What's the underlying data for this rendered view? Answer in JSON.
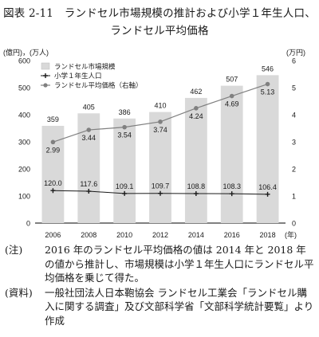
{
  "figure": {
    "title_line1": "図表 2-11　ランドセル市場規模の推計および小学１年生人口、",
    "title_line2": "ランドセル平均価格"
  },
  "chart_data": {
    "type": "bar",
    "categories": [
      "2006",
      "2008",
      "2010",
      "2012",
      "2014",
      "2016",
      "2018"
    ],
    "x_unit": "(年)",
    "series": [
      {
        "name": "ランドセル市場規模",
        "type": "bar",
        "axis": "left",
        "values": [
          359,
          405,
          386,
          410,
          462,
          507,
          546
        ],
        "color": "#d9d9d9"
      },
      {
        "name": "小学１年生人口",
        "type": "line",
        "axis": "left",
        "values": [
          120.0,
          117.6,
          109.1,
          109.7,
          108.8,
          108.3,
          106.4
        ],
        "labels": [
          "120.0",
          "117.6",
          "109.1",
          "109.7",
          "108.8",
          "108.3",
          "106.4"
        ],
        "color": "#1a1a1a"
      },
      {
        "name": "ランドセル平均価格（右軸）",
        "type": "line",
        "axis": "right",
        "values": [
          2.99,
          3.44,
          3.54,
          3.74,
          4.24,
          4.69,
          5.13
        ],
        "color": "#808080"
      }
    ],
    "left_axis": {
      "unit": "(億円)，(万人)",
      "ylim": [
        0,
        600
      ],
      "ticks": [
        "0",
        "100",
        "200",
        "300",
        "400",
        "500",
        "600"
      ]
    },
    "right_axis": {
      "unit": "(万円)",
      "ylim": [
        0,
        6
      ],
      "ticks": [
        "0",
        "1",
        "2",
        "3",
        "4",
        "5",
        "6"
      ]
    },
    "legend_position": "top-left",
    "grid": false
  },
  "notes": [
    {
      "label": "(注)",
      "text": "2016 年のランドセル平均価格の値は 2014 年と 2018 年の値から推計し、市場規模は小学１年生人口にランドセル平均価格を乗じて得た。"
    },
    {
      "label": "(資料)",
      "text": "一般社団法人日本鞄協会 ランドセル工業会「ランドセル購入に関する調査」及び文部科学省「文部科学統計要覧」より作成"
    }
  ]
}
